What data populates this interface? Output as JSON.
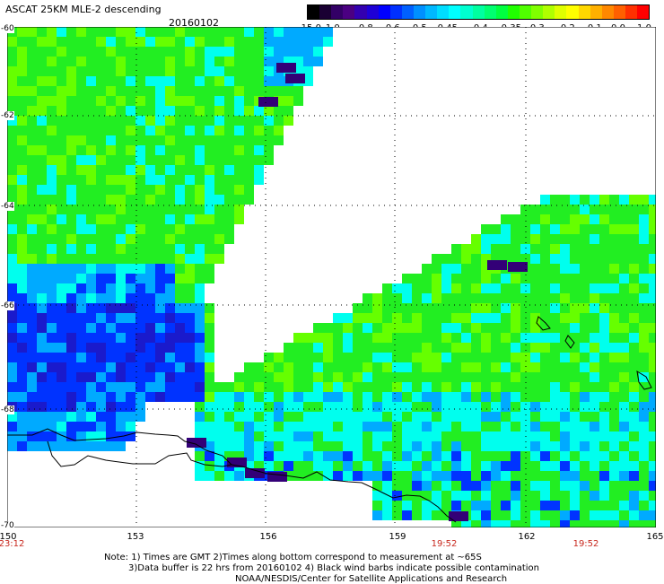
{
  "header": {
    "title": "ASCAT 25KM MLE-2 descending",
    "date": "20160102"
  },
  "colorbar": {
    "labels": [
      "-15.0",
      "-1.0",
      "-0.8",
      "-0.6",
      "-0.5",
      "-0.45",
      "-0.4",
      "-0.35",
      "-0.3",
      "-0.2",
      "-0.1",
      "0.0",
      "1.0"
    ],
    "colors": [
      "#000000",
      "#1a0033",
      "#330066",
      "#4b0082",
      "#3300b0",
      "#1e00d6",
      "#0000ff",
      "#0030ff",
      "#0060ff",
      "#0090ff",
      "#00b8ff",
      "#00ddff",
      "#00ffff",
      "#00ffd0",
      "#00ffa0",
      "#00ff70",
      "#00ff40",
      "#20ff00",
      "#50ff00",
      "#80ff00",
      "#b0ff00",
      "#e0ff00",
      "#ffff00",
      "#ffd800",
      "#ffb000",
      "#ff8800",
      "#ff6000",
      "#ff3000",
      "#ff0000"
    ]
  },
  "axes": {
    "lat_labels": [
      "-60",
      "-62",
      "-64",
      "-66",
      "-68",
      "-70"
    ],
    "lon_labels": [
      "150",
      "153",
      "156",
      "159",
      "162",
      "165"
    ]
  },
  "times": [
    "23:12",
    "19:52",
    "19:52"
  ],
  "notes": {
    "line1": "Note: 1) Times are GMT 2)Times along bottom correspond to measurement at ~65S",
    "line2": "3)Data buffer is 22 hrs from 20160102 4) Black wind barbs indicate possible contamination",
    "line3": "NOAA/NESDIS/Center for Satellite Applications and Research"
  },
  "map_colors": {
    "green": "#22ee22",
    "lime": "#66ff00",
    "cyan": "#00ffee",
    "sky": "#00aaff",
    "blue": "#0033ff",
    "darkblue": "#1a1acc",
    "purple": "#330077"
  }
}
